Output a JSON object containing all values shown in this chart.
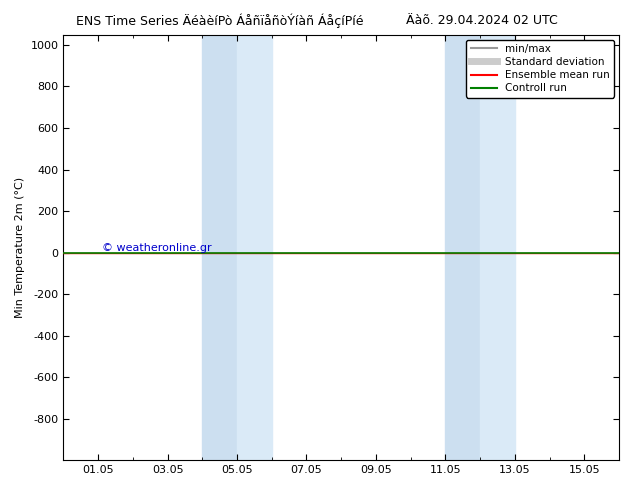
{
  "title_left": "ENS Time Series ÄéàèíPò ÁåñïåñòÝíàñ ÁåçíPíé",
  "title_right": "Äàõ. 29.04.2024 02 UTC",
  "ylabel": "Min Temperature 2m (°C)",
  "ylim_top": -1000,
  "ylim_bottom": 1050,
  "yticks": [
    -800,
    -600,
    -400,
    -200,
    0,
    200,
    400,
    600,
    800,
    1000
  ],
  "xticks_labels": [
    "01.05",
    "03.05",
    "05.05",
    "07.05",
    "09.05",
    "11.05",
    "13.05",
    "15.05"
  ],
  "xticks_pos": [
    1,
    3,
    5,
    7,
    9,
    11,
    13,
    15
  ],
  "xlim": [
    0,
    16
  ],
  "shaded_regions": [
    {
      "x_start": 4.0,
      "x_end": 5.0
    },
    {
      "x_start": 5.0,
      "x_end": 6.0
    },
    {
      "x_start": 11.0,
      "x_end": 12.0
    },
    {
      "x_start": 12.0,
      "x_end": 13.0
    }
  ],
  "shade_color_odd": "#ccdff0",
  "shade_color_even": "#daeaf7",
  "ensemble_mean_y": 0,
  "control_run_y": 0,
  "ensemble_mean_color": "#ff0000",
  "control_run_color": "#008000",
  "minmax_color": "#999999",
  "stddev_color": "#cccccc",
  "watermark": "© weatheronline.gr",
  "watermark_color": "#0000cc",
  "background_color": "#ffffff",
  "legend_labels": [
    "min/max",
    "Standard deviation",
    "Ensemble mean run",
    "Controll run"
  ],
  "legend_line_colors": [
    "#999999",
    "#cccccc",
    "#ff0000",
    "#008000"
  ]
}
